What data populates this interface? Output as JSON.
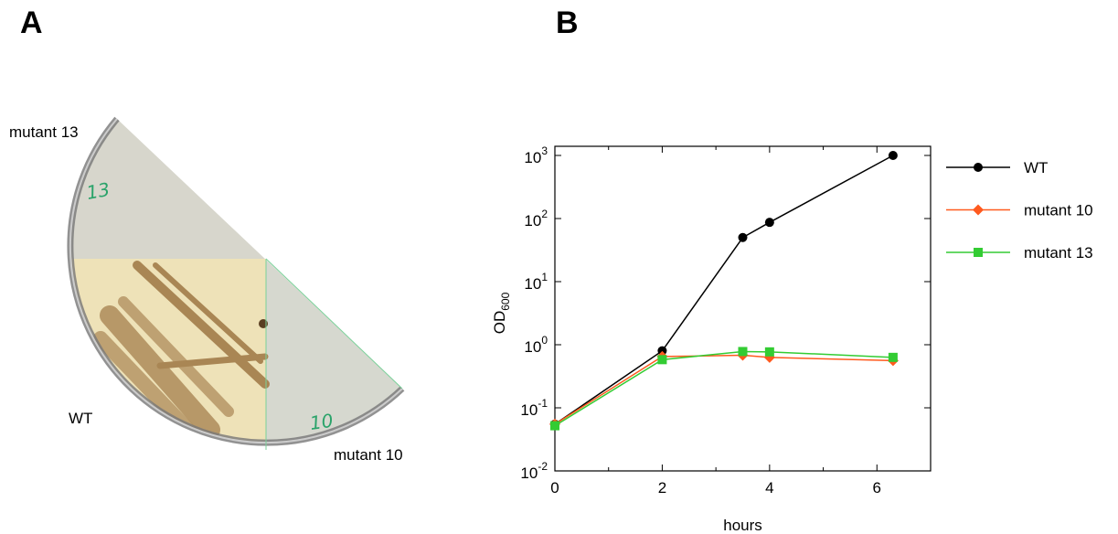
{
  "panels": {
    "a": "A",
    "b": "B"
  },
  "photo": {
    "labels": [
      "mutant 13",
      "WT",
      "mutant 10"
    ],
    "dish_marks": [
      "13",
      "10"
    ]
  },
  "chart_data": {
    "type": "line",
    "x_label": "hours",
    "y_label": "OD",
    "y_label_subscript": "600",
    "x": [
      0,
      2,
      3.5,
      4,
      6.3
    ],
    "series": [
      {
        "name": "WT",
        "color": "#000000",
        "marker": "circle",
        "values": [
          0.055,
          0.8,
          50,
          87,
          1000
        ]
      },
      {
        "name": "mutant 10",
        "color": "#ff5a1e",
        "marker": "diamond",
        "values": [
          0.055,
          0.65,
          0.68,
          0.63,
          0.56
        ]
      },
      {
        "name": "mutant 13",
        "color": "#33cc33",
        "marker": "square",
        "values": [
          0.052,
          0.58,
          0.78,
          0.77,
          0.63
        ]
      }
    ],
    "xlim": [
      0,
      7
    ],
    "xticks": [
      0,
      2,
      4,
      6
    ],
    "x_minor_ticks": [
      1,
      3,
      5
    ],
    "ylim": [
      0.01,
      1000
    ],
    "yscale": "log",
    "yticks": [
      {
        "value": 0.01,
        "label": "10",
        "label_exponent": "-2"
      },
      {
        "value": 0.1,
        "label": "10",
        "label_exponent": "-1"
      },
      {
        "value": 1,
        "label": "10",
        "label_exponent": "0"
      },
      {
        "value": 10,
        "label": "10",
        "label_exponent": "1"
      },
      {
        "value": 100,
        "label": "10",
        "label_exponent": "2"
      },
      {
        "value": 1000,
        "label": "10",
        "label_exponent": "3"
      }
    ],
    "legend": "right",
    "grid": false
  }
}
